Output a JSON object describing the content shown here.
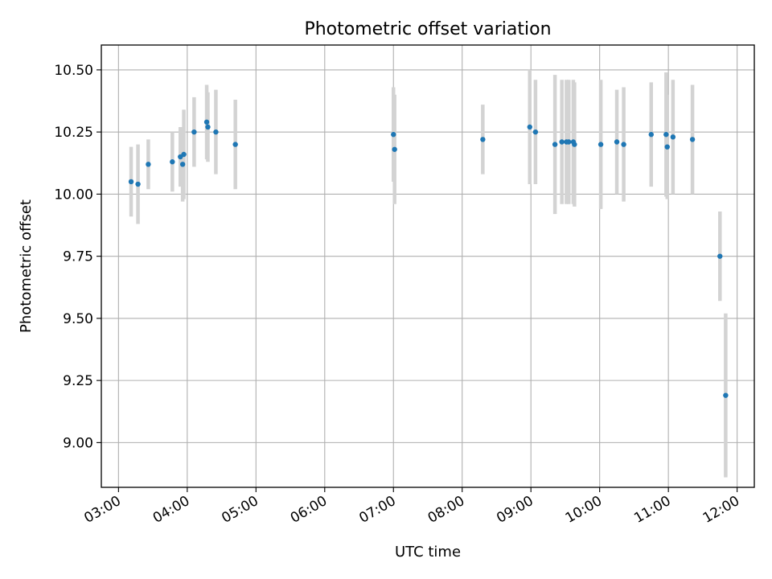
{
  "chart_data": {
    "type": "scatter",
    "title": "Photometric offset variation",
    "xlabel": "UTC time",
    "ylabel": "Photometric offset",
    "x_ticks": [
      "03:00",
      "04:00",
      "05:00",
      "06:00",
      "07:00",
      "08:00",
      "09:00",
      "10:00",
      "11:00",
      "12:00"
    ],
    "y_ticks": [
      "9.00",
      "9.25",
      "9.50",
      "9.75",
      "10.00",
      "10.25",
      "10.50"
    ],
    "xlim": [
      "02:45",
      "12:15"
    ],
    "ylim": [
      8.82,
      10.6
    ],
    "grid": true,
    "colors": {
      "point": "#1f77b4",
      "errorbar": "#d3d3d3",
      "grid": "#b0b0b0"
    },
    "series": [
      {
        "points": [
          {
            "x": "03:11",
            "y": 10.05,
            "yerr": 0.14
          },
          {
            "x": "03:17",
            "y": 10.04,
            "yerr": 0.16
          },
          {
            "x": "03:26",
            "y": 10.12,
            "yerr": 0.1
          },
          {
            "x": "03:47",
            "y": 10.13,
            "yerr": 0.12
          },
          {
            "x": "03:54",
            "y": 10.15,
            "yerr": 0.12
          },
          {
            "x": "03:56",
            "y": 10.12,
            "yerr": 0.15
          },
          {
            "x": "03:57",
            "y": 10.16,
            "yerr": 0.18
          },
          {
            "x": "04:06",
            "y": 10.25,
            "yerr": 0.14
          },
          {
            "x": "04:17",
            "y": 10.29,
            "yerr": 0.15
          },
          {
            "x": "04:18",
            "y": 10.27,
            "yerr": 0.14
          },
          {
            "x": "04:25",
            "y": 10.25,
            "yerr": 0.17
          },
          {
            "x": "04:42",
            "y": 10.2,
            "yerr": 0.18
          },
          {
            "x": "07:00",
            "y": 10.24,
            "yerr": 0.19
          },
          {
            "x": "07:01",
            "y": 10.18,
            "yerr": 0.22
          },
          {
            "x": "08:18",
            "y": 10.22,
            "yerr": 0.14
          },
          {
            "x": "08:59",
            "y": 10.27,
            "yerr": 0.23
          },
          {
            "x": "09:04",
            "y": 10.25,
            "yerr": 0.21
          },
          {
            "x": "09:21",
            "y": 10.2,
            "yerr": 0.28
          },
          {
            "x": "09:27",
            "y": 10.21,
            "yerr": 0.25
          },
          {
            "x": "09:31",
            "y": 10.21,
            "yerr": 0.25
          },
          {
            "x": "09:33",
            "y": 10.21,
            "yerr": 0.25
          },
          {
            "x": "09:37",
            "y": 10.21,
            "yerr": 0.25
          },
          {
            "x": "09:38",
            "y": 10.2,
            "yerr": 0.25
          },
          {
            "x": "10:01",
            "y": 10.2,
            "yerr": 0.26
          },
          {
            "x": "10:15",
            "y": 10.21,
            "yerr": 0.21
          },
          {
            "x": "10:21",
            "y": 10.2,
            "yerr": 0.23
          },
          {
            "x": "10:45",
            "y": 10.24,
            "yerr": 0.21
          },
          {
            "x": "10:58",
            "y": 10.24,
            "yerr": 0.25
          },
          {
            "x": "10:59",
            "y": 10.19,
            "yerr": 0.21
          },
          {
            "x": "11:04",
            "y": 10.23,
            "yerr": 0.23
          },
          {
            "x": "11:21",
            "y": 10.22,
            "yerr": 0.22
          },
          {
            "x": "11:45",
            "y": 9.75,
            "yerr": 0.18
          },
          {
            "x": "11:50",
            "y": 9.19,
            "yerr": 0.33
          }
        ]
      }
    ]
  }
}
